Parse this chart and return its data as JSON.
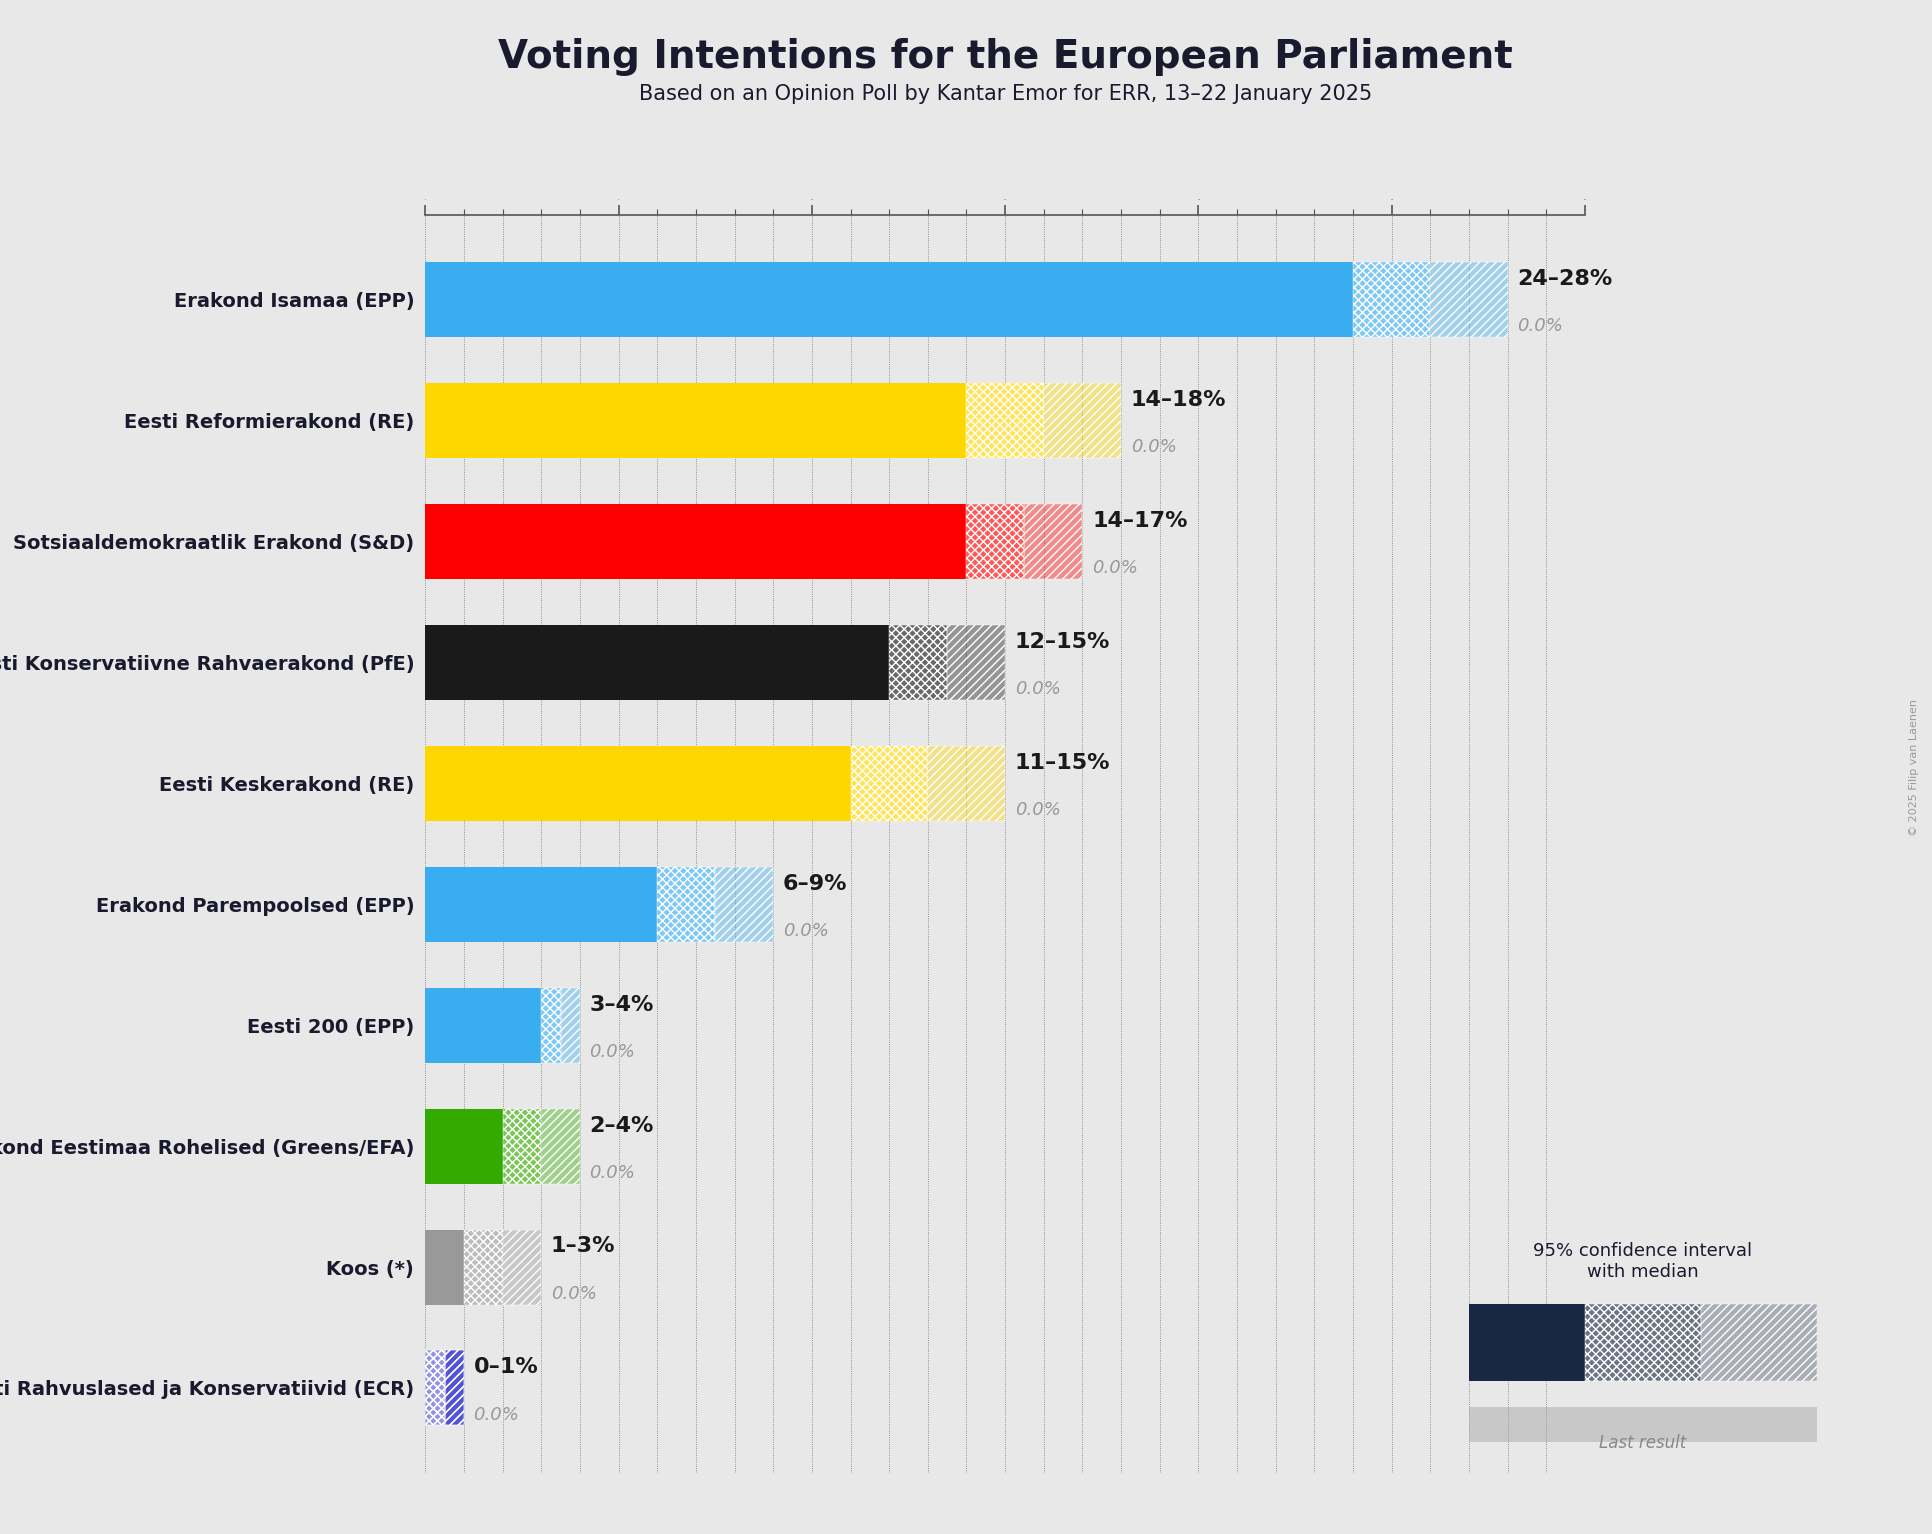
{
  "title": "Voting Intentions for the European Parliament",
  "subtitle": "Based on an Opinion Poll by Kantar Emor for ERR, 13–22 January 2025",
  "copyright": "© 2025 Filip van Laenen",
  "background_color": "#e8e8e8",
  "parties": [
    {
      "name": "Erakond Isamaa (EPP)",
      "median": 24,
      "ci_low": 24,
      "ci_high": 28,
      "last": 0.0,
      "color": "#3aacf0",
      "label": "24–28%"
    },
    {
      "name": "Eesti Reformierakond (RE)",
      "median": 14,
      "ci_low": 14,
      "ci_high": 18,
      "last": 0.0,
      "color": "#FFD700",
      "label": "14–18%"
    },
    {
      "name": "Sotsiaaldemokraatlik Erakond (S&D)",
      "median": 14,
      "ci_low": 14,
      "ci_high": 17,
      "last": 0.0,
      "color": "#FF0000",
      "label": "14–17%"
    },
    {
      "name": "Eesti Konservatiivne Rahvaerakond (PfE)",
      "median": 12,
      "ci_low": 12,
      "ci_high": 15,
      "last": 0.0,
      "color": "#1a1a1a",
      "label": "12–15%"
    },
    {
      "name": "Eesti Keskerakond (RE)",
      "median": 11,
      "ci_low": 11,
      "ci_high": 15,
      "last": 0.0,
      "color": "#FFD700",
      "label": "11–15%"
    },
    {
      "name": "Erakond Parempoolsed (EPP)",
      "median": 6,
      "ci_low": 6,
      "ci_high": 9,
      "last": 0.0,
      "color": "#3aacf0",
      "label": "6–9%"
    },
    {
      "name": "Eesti 200 (EPP)",
      "median": 3,
      "ci_low": 3,
      "ci_high": 4,
      "last": 0.0,
      "color": "#3aacf0",
      "label": "3–4%"
    },
    {
      "name": "Erakond Eestimaa Rohelised (Greens/EFA)",
      "median": 2,
      "ci_low": 2,
      "ci_high": 4,
      "last": 0.0,
      "color": "#33aa00",
      "label": "2–4%"
    },
    {
      "name": "Koos (*)",
      "median": 1,
      "ci_low": 1,
      "ci_high": 3,
      "last": 0.0,
      "color": "#999999",
      "label": "1–3%"
    },
    {
      "name": "Eesti Rahvuslased ja Konservatiivid (ECR)",
      "median": 0,
      "ci_low": 0,
      "ci_high": 1,
      "last": 0.0,
      "color": "#0000cc",
      "label": "0–1%"
    }
  ],
  "xlim_max": 30,
  "bar_height": 0.62,
  "legend_dark_color": "#1a2744",
  "legend_gray_color": "#aaaaaa",
  "label_fontsize": 16,
  "sublabel_fontsize": 13,
  "yticklabel_fontsize": 14,
  "title_fontsize": 28,
  "subtitle_fontsize": 15
}
